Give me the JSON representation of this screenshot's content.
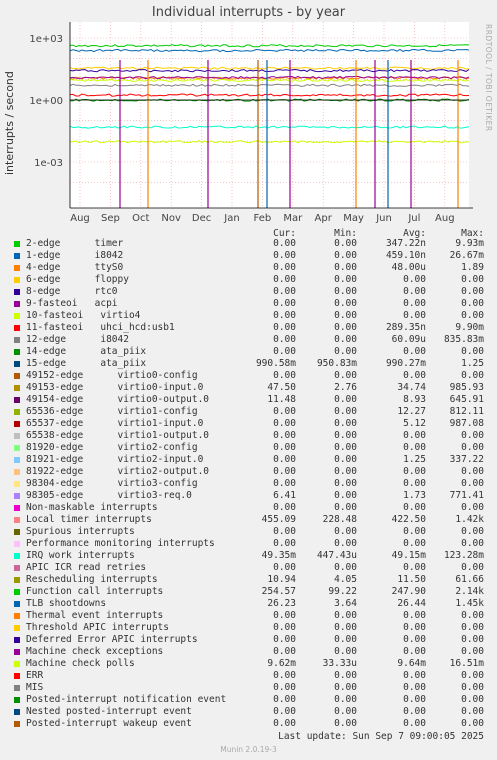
{
  "title": "Individual interrupts - by year",
  "side_tag": "RRDTOOL / TOBI OETIKER",
  "chart_data": {
    "type": "line",
    "ylabel": "interrupts / second",
    "yscale": "log",
    "y_ticks": [
      "1e+03",
      "1e+00",
      "1e-03"
    ],
    "x_ticks": [
      "Aug",
      "Sep",
      "Oct",
      "Nov",
      "Dec",
      "Jan",
      "Feb",
      "Mar",
      "Apr",
      "May",
      "Jun",
      "Jul",
      "Aug"
    ],
    "grid": true,
    "series_levels": [
      {
        "name": "Local timer interrupts",
        "color": "#00cc00",
        "value": 422.5
      },
      {
        "name": "Function call interrupts",
        "color": "#0066b3",
        "value": 247.9
      },
      {
        "name": "Rescheduling interrupts",
        "color": "#ff8000",
        "value": 11.5
      },
      {
        "name": "virtio0-input.0",
        "color": "#ffcc00",
        "value": 34.74
      },
      {
        "name": "TLB shootdowns",
        "color": "#330099",
        "value": 26.44
      },
      {
        "name": "virtio1-config",
        "color": "#990099",
        "value": 12.27
      },
      {
        "name": "virtio0-output.0",
        "color": "#ccff00",
        "value": 8.93
      },
      {
        "name": "virtio3-req.0",
        "color": "#ff0000",
        "value": 1.73
      },
      {
        "name": "virtio1-input.0",
        "color": "#808080",
        "value": 5.12
      },
      {
        "name": "15-edge ata_piix",
        "color": "#008f00",
        "value": 0.99
      },
      {
        "name": "IRQ work interrupts",
        "color": "#00ffcc",
        "value": 0.049
      },
      {
        "name": "Machine check polls",
        "color": "#ccff00",
        "value": 0.0096
      }
    ]
  },
  "columns": {
    "cur": "Cur:",
    "min": "Min:",
    "avg": "Avg:",
    "max": "Max:"
  },
  "legend": [
    {
      "label": "2-edge      timer",
      "color": "#00cc00",
      "cur": "0.00",
      "min": "0.00",
      "avg": "347.22n",
      "max": "9.93m"
    },
    {
      "label": "1-edge      i8042",
      "color": "#0066b3",
      "cur": "0.00",
      "min": "0.00",
      "avg": "459.10n",
      "max": "26.67m"
    },
    {
      "label": "4-edge      ttyS0",
      "color": "#ff8000",
      "cur": "0.00",
      "min": "0.00",
      "avg": "48.00u",
      "max": "1.89"
    },
    {
      "label": "6-edge      floppy",
      "color": "#ffcc00",
      "cur": "0.00",
      "min": "0.00",
      "avg": "0.00",
      "max": "0.00"
    },
    {
      "label": "8-edge      rtc0",
      "color": "#330099",
      "cur": "0.00",
      "min": "0.00",
      "avg": "0.00",
      "max": "0.00"
    },
    {
      "label": "9-fasteoi   acpi",
      "color": "#990099",
      "cur": "0.00",
      "min": "0.00",
      "avg": "0.00",
      "max": "0.00"
    },
    {
      "label": "10-fasteoi   virtio4",
      "color": "#ccff00",
      "cur": "0.00",
      "min": "0.00",
      "avg": "0.00",
      "max": "0.00"
    },
    {
      "label": "11-fasteoi   uhci_hcd:usb1",
      "color": "#ff0000",
      "cur": "0.00",
      "min": "0.00",
      "avg": "289.35n",
      "max": "9.90m"
    },
    {
      "label": "12-edge      i8042",
      "color": "#808080",
      "cur": "0.00",
      "min": "0.00",
      "avg": "60.09u",
      "max": "835.83m"
    },
    {
      "label": "14-edge      ata_piix",
      "color": "#008f00",
      "cur": "0.00",
      "min": "0.00",
      "avg": "0.00",
      "max": "0.00"
    },
    {
      "label": "15-edge      ata_piix",
      "color": "#00487d",
      "cur": "990.58m",
      "min": "950.83m",
      "avg": "990.27m",
      "max": "1.25"
    },
    {
      "label": "49152-edge      virtio0-config",
      "color": "#b35a00",
      "cur": "0.00",
      "min": "0.00",
      "avg": "0.00",
      "max": "0.00"
    },
    {
      "label": "49153-edge      virtio0-input.0",
      "color": "#b38f00",
      "cur": "47.50",
      "min": "2.76",
      "avg": "34.74",
      "max": "985.93"
    },
    {
      "label": "49154-edge      virtio0-output.0",
      "color": "#6b006b",
      "cur": "11.48",
      "min": "0.00",
      "avg": "8.93",
      "max": "645.91"
    },
    {
      "label": "65536-edge      virtio1-config",
      "color": "#8fb300",
      "cur": "0.00",
      "min": "0.00",
      "avg": "12.27",
      "max": "812.11"
    },
    {
      "label": "65537-edge      virtio1-input.0",
      "color": "#b30000",
      "cur": "0.00",
      "min": "0.00",
      "avg": "5.12",
      "max": "987.08"
    },
    {
      "label": "65538-edge      virtio1-output.0",
      "color": "#bebebe",
      "cur": "0.00",
      "min": "0.00",
      "avg": "0.00",
      "max": "0.00"
    },
    {
      "label": "81920-edge      virtio2-config",
      "color": "#80ff80",
      "cur": "0.00",
      "min": "0.00",
      "avg": "0.00",
      "max": "0.00"
    },
    {
      "label": "81921-edge      virtio2-input.0",
      "color": "#80c9ff",
      "cur": "0.00",
      "min": "0.00",
      "avg": "1.25",
      "max": "337.22"
    },
    {
      "label": "81922-edge      virtio2-output.0",
      "color": "#ffc080",
      "cur": "0.00",
      "min": "0.00",
      "avg": "0.00",
      "max": "0.00"
    },
    {
      "label": "98304-edge      virtio3-config",
      "color": "#ffe680",
      "cur": "0.00",
      "min": "0.00",
      "avg": "0.00",
      "max": "0.00"
    },
    {
      "label": "98305-edge      virtio3-req.0",
      "color": "#aa80ff",
      "cur": "6.41",
      "min": "0.00",
      "avg": "1.73",
      "max": "771.41"
    },
    {
      "label": "Non-maskable interrupts",
      "color": "#ee00cc",
      "cur": "0.00",
      "min": "0.00",
      "avg": "0.00",
      "max": "0.00"
    },
    {
      "label": "Local timer interrupts",
      "color": "#ff8080",
      "cur": "455.09",
      "min": "228.48",
      "avg": "422.50",
      "max": "1.42k"
    },
    {
      "label": "Spurious interrupts",
      "color": "#666600",
      "cur": "0.00",
      "min": "0.00",
      "avg": "0.00",
      "max": "0.00"
    },
    {
      "label": "Performance monitoring interrupts",
      "color": "#ffbfff",
      "cur": "0.00",
      "min": "0.00",
      "avg": "0.00",
      "max": "0.00"
    },
    {
      "label": "IRQ work interrupts",
      "color": "#00ffcc",
      "cur": "49.35m",
      "min": "447.43u",
      "avg": "49.15m",
      "max": "123.28m"
    },
    {
      "label": "APIC ICR read retries",
      "color": "#cc6699",
      "cur": "0.00",
      "min": "0.00",
      "avg": "0.00",
      "max": "0.00"
    },
    {
      "label": "Rescheduling interrupts",
      "color": "#999900",
      "cur": "10.94",
      "min": "4.05",
      "avg": "11.50",
      "max": "61.66"
    },
    {
      "label": "Function call interrupts",
      "color": "#00cc00",
      "cur": "254.57",
      "min": "99.22",
      "avg": "247.90",
      "max": "2.14k"
    },
    {
      "label": "TLB shootdowns",
      "color": "#0066b3",
      "cur": "26.23",
      "min": "3.64",
      "avg": "26.44",
      "max": "1.45k"
    },
    {
      "label": "Thermal event interrupts",
      "color": "#ff8000",
      "cur": "0.00",
      "min": "0.00",
      "avg": "0.00",
      "max": "0.00"
    },
    {
      "label": "Threshold APIC interrupts",
      "color": "#ffcc00",
      "cur": "0.00",
      "min": "0.00",
      "avg": "0.00",
      "max": "0.00"
    },
    {
      "label": "Deferred Error APIC interrupts",
      "color": "#330099",
      "cur": "0.00",
      "min": "0.00",
      "avg": "0.00",
      "max": "0.00"
    },
    {
      "label": "Machine check exceptions",
      "color": "#990099",
      "cur": "0.00",
      "min": "0.00",
      "avg": "0.00",
      "max": "0.00"
    },
    {
      "label": "Machine check polls",
      "color": "#ccff00",
      "cur": "9.62m",
      "min": "33.33u",
      "avg": "9.64m",
      "max": "16.51m"
    },
    {
      "label": "ERR",
      "color": "#ff0000",
      "cur": "0.00",
      "min": "0.00",
      "avg": "0.00",
      "max": "0.00"
    },
    {
      "label": "MIS",
      "color": "#808080",
      "cur": "0.00",
      "min": "0.00",
      "avg": "0.00",
      "max": "0.00"
    },
    {
      "label": "Posted-interrupt notification event",
      "color": "#008f00",
      "cur": "0.00",
      "min": "0.00",
      "avg": "0.00",
      "max": "0.00"
    },
    {
      "label": "Nested posted-interrupt event",
      "color": "#00487d",
      "cur": "0.00",
      "min": "0.00",
      "avg": "0.00",
      "max": "0.00"
    },
    {
      "label": "Posted-interrupt wakeup event",
      "color": "#b35a00",
      "cur": "0.00",
      "min": "0.00",
      "avg": "0.00",
      "max": "0.00"
    }
  ],
  "last_update": "Last update:  Sun Sep  7 09:00:05 2025",
  "footer": "Munin 2.0.19-3"
}
